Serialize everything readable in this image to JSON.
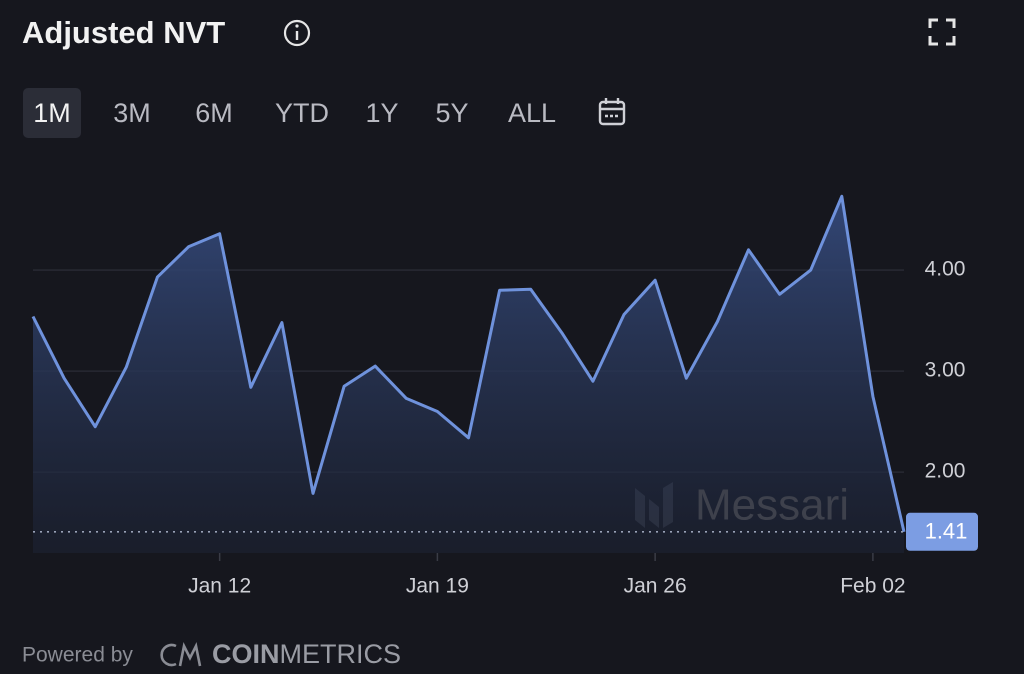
{
  "chart_data": {
    "type": "area",
    "title": "Adjusted NVT",
    "range_options": [
      "1M",
      "3M",
      "6M",
      "YTD",
      "1Y",
      "5Y",
      "ALL"
    ],
    "selected_range": 0,
    "watermark": "Messari",
    "footer_text": "Powered by",
    "footer_brand": [
      "COIN",
      "METRICS"
    ],
    "categories": [
      null,
      null,
      null,
      null,
      null,
      null,
      "Jan 12",
      null,
      null,
      null,
      null,
      null,
      null,
      "Jan 19",
      null,
      null,
      null,
      null,
      null,
      null,
      "Jan 26",
      null,
      null,
      null,
      null,
      null,
      null,
      "Feb 02",
      null
    ],
    "values": [
      3.54,
      2.93,
      2.45,
      3.04,
      3.93,
      4.23,
      4.36,
      2.84,
      3.48,
      1.79,
      2.85,
      3.05,
      2.73,
      2.6,
      2.34,
      3.8,
      3.81,
      3.38,
      2.9,
      3.56,
      3.9,
      2.93,
      3.49,
      4.2,
      3.76,
      4.0,
      4.73,
      2.75,
      1.41
    ],
    "color": "#6f92dc",
    "ylim": [
      1.2,
      5.0
    ],
    "yticks": [
      {
        "value": 2,
        "label": "2.00"
      },
      {
        "value": 3,
        "label": "3.00"
      },
      {
        "value": 4,
        "label": "4.00"
      }
    ],
    "grid": true
  }
}
